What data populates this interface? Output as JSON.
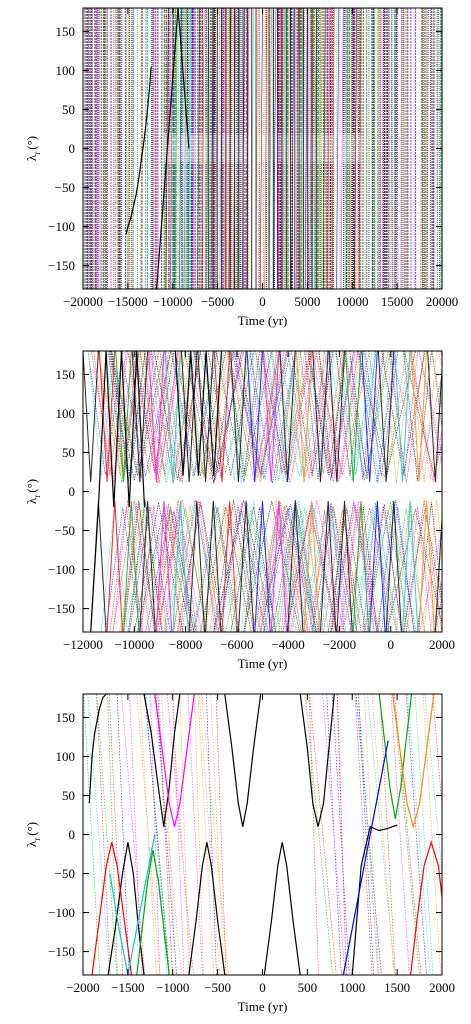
{
  "chart_data": [
    {
      "type": "line",
      "panel": "top",
      "xlabel": "Time (yr)",
      "ylabel_symbol": "λ",
      "ylabel_sub": "r",
      "ylabel_unit": "(°)",
      "xlim": [
        -20000,
        20000
      ],
      "ylim": [
        -180,
        180
      ],
      "xticks": [
        -20000,
        -15000,
        -10000,
        -5000,
        0,
        5000,
        10000,
        15000,
        20000
      ],
      "xtick_labels": [
        "−20000",
        "−15000",
        "−10000",
        "−5000",
        "0",
        "5000",
        "10000",
        "15000",
        "20000"
      ],
      "yticks": [
        -150,
        -100,
        -50,
        0,
        50,
        100,
        150
      ],
      "ytick_labels": [
        "−150",
        "−100",
        "−50",
        "0",
        "50",
        "100",
        "150"
      ],
      "grid": false,
      "legend": "none",
      "series_colors": [
        "#000000",
        "#ff0000",
        "#00aa00",
        "#0000ff",
        "#ff00ff",
        "#00cccc",
        "#ff8800"
      ],
      "series": [
        {
          "x": [
            -15200,
            -15000,
            -14700,
            -14400,
            -14100,
            -13800,
            -13500,
            -13200,
            -12900,
            -12600,
            -12400
          ],
          "y": [
            -110,
            -100,
            -90,
            -75,
            -60,
            -40,
            -15,
            10,
            40,
            75,
            105
          ]
        },
        {
          "x": [
            -11800,
            -11400,
            -11000,
            -10600,
            -10200,
            -9800,
            -9400,
            -9000,
            -8600,
            -8200
          ],
          "y": [
            -180,
            -120,
            -60,
            0,
            60,
            120,
            180,
            120,
            60,
            0
          ]
        }
      ]
    },
    {
      "type": "line",
      "panel": "middle",
      "xlabel": "Time (yr)",
      "ylabel_symbol": "λ",
      "ylabel_sub": "r",
      "ylabel_unit": "(°)",
      "xlim": [
        -12000,
        2000
      ],
      "ylim": [
        -180,
        180
      ],
      "xticks": [
        -12000,
        -10000,
        -8000,
        -6000,
        -4000,
        -2000,
        0,
        2000
      ],
      "xtick_labels": [
        "−12000",
        "−10000",
        "−8000",
        "−6000",
        "−4000",
        "−2000",
        "0",
        "2000"
      ],
      "yticks": [
        -150,
        -100,
        -50,
        0,
        50,
        100,
        150
      ],
      "ytick_labels": [
        "−150",
        "−100",
        "−50",
        "0",
        "50",
        "100",
        "150"
      ],
      "grid": false,
      "legend": "none",
      "series_colors": [
        "#000000",
        "#ff0000",
        "#00aa00",
        "#0000ff",
        "#ff00ff",
        "#00cccc",
        "#ff8800"
      ],
      "series": [
        {
          "x": [
            -11700,
            -11400,
            -11100,
            -10800,
            -10500,
            -10200,
            -9900,
            -9600
          ],
          "y": [
            -180,
            -20,
            180,
            -20,
            180,
            -20,
            180,
            -20
          ]
        },
        {
          "x": [
            -8400,
            -8100,
            -7800,
            -7500,
            -7200,
            -6900,
            -6600
          ],
          "y": [
            180,
            20,
            180,
            20,
            180,
            20,
            180
          ]
        }
      ]
    },
    {
      "type": "line",
      "panel": "bottom",
      "xlabel": "Time (yr)",
      "ylabel_symbol": "λ",
      "ylabel_sub": "r",
      "ylabel_unit": "(°)",
      "xlim": [
        -2000,
        2000
      ],
      "ylim": [
        -180,
        180
      ],
      "xticks": [
        -2000,
        -1500,
        -1000,
        -500,
        0,
        500,
        1000,
        1500,
        2000
      ],
      "xtick_labels": [
        "−2000",
        "−1500",
        "−1000",
        "−500",
        "0",
        "500",
        "1000",
        "1500",
        "2000"
      ],
      "yticks": [
        -150,
        -100,
        -50,
        0,
        50,
        100,
        150
      ],
      "ytick_labels": [
        "−150",
        "−100",
        "−50",
        "0",
        "50",
        "100",
        "150"
      ],
      "grid": false,
      "legend": "none",
      "series_colors": [
        "#000000",
        "#ff0000",
        "#00aa00",
        "#0000ff",
        "#ff00ff",
        "#00cccc",
        "#ff8800"
      ],
      "series": [
        {
          "name": "",
          "x": [
            -1930,
            -1900,
            -1870,
            -1820,
            -1780,
            -1740
          ],
          "y": [
            40,
            100,
            130,
            160,
            175,
            180
          ],
          "color": "#000000"
        },
        {
          "x": [
            -1720,
            -1640,
            -1560,
            -1500,
            -1440,
            -1380,
            -1320
          ],
          "y": [
            -180,
            -120,
            -50,
            -10,
            -50,
            -120,
            -180
          ],
          "color": "#000000"
        },
        {
          "x": [
            -1320,
            -1240,
            -1160,
            -1100,
            -1040,
            -980,
            -920
          ],
          "y": [
            180,
            130,
            60,
            10,
            60,
            130,
            180
          ],
          "color": "#000000"
        },
        {
          "x": [
            -820,
            -740,
            -670,
            -620,
            -570,
            -500,
            -420
          ],
          "y": [
            -180,
            -110,
            -40,
            -10,
            -40,
            -110,
            -180
          ],
          "color": "#000000"
        },
        {
          "x": [
            -420,
            -340,
            -270,
            -220,
            -170,
            -100,
            -20
          ],
          "y": [
            180,
            110,
            40,
            10,
            40,
            110,
            180
          ],
          "color": "#000000"
        },
        {
          "x": [
            20,
            100,
            170,
            220,
            270,
            340,
            420
          ],
          "y": [
            -180,
            -110,
            -40,
            -10,
            -40,
            -110,
            -180
          ],
          "color": "#000000"
        },
        {
          "x": [
            420,
            500,
            560,
            620,
            680,
            740,
            800
          ],
          "y": [
            180,
            110,
            40,
            10,
            40,
            110,
            180
          ],
          "color": "#000000"
        },
        {
          "x": [
            1000,
            1050,
            1100,
            1200,
            1300,
            1400,
            1500
          ],
          "y": [
            -180,
            -110,
            -40,
            10,
            5,
            8,
            12
          ],
          "color": "#000000"
        },
        {
          "x": [
            -1900,
            -1820,
            -1740,
            -1680,
            -1620,
            -1540,
            -1460
          ],
          "y": [
            -180,
            -110,
            -40,
            -10,
            -40,
            -110,
            -180
          ],
          "color": "#ff0000"
        },
        {
          "x": [
            1650,
            1720,
            1800,
            1880,
            1960,
            2000
          ],
          "y": [
            -180,
            -110,
            -40,
            -10,
            -40,
            -80
          ],
          "color": "#ff0000"
        },
        {
          "x": [
            -1400,
            -1340,
            -1280,
            -1220,
            -1160,
            -1100,
            -1040
          ],
          "y": [
            -180,
            -120,
            -60,
            -20,
            -60,
            -120,
            -180
          ],
          "color": "#00aa00"
        },
        {
          "x": [
            1300,
            1360,
            1420,
            1480,
            1540,
            1600,
            1660
          ],
          "y": [
            180,
            120,
            60,
            20,
            60,
            120,
            180
          ],
          "color": "#00aa00"
        },
        {
          "x": [
            -1200,
            -1120,
            -1040,
            -980,
            -920,
            -840,
            -760
          ],
          "y": [
            180,
            110,
            40,
            10,
            40,
            110,
            180
          ],
          "color": "#ff00ff"
        },
        {
          "x": [
            1450,
            1530,
            1610,
            1680,
            1750,
            1830,
            1910
          ],
          "y": [
            180,
            110,
            40,
            10,
            40,
            110,
            180
          ],
          "color": "#ff8800"
        },
        {
          "x": [
            -1700,
            -1600,
            -1500,
            -1400,
            -1300,
            -1200
          ],
          "y": [
            -50,
            -120,
            -180,
            -120,
            -60,
            0
          ],
          "color": "#00cccc"
        },
        {
          "x": [
            900,
            1000,
            1100,
            1200,
            1300,
            1400
          ],
          "y": [
            -180,
            -120,
            -60,
            0,
            60,
            120
          ],
          "color": "#0000ff"
        }
      ]
    }
  ]
}
